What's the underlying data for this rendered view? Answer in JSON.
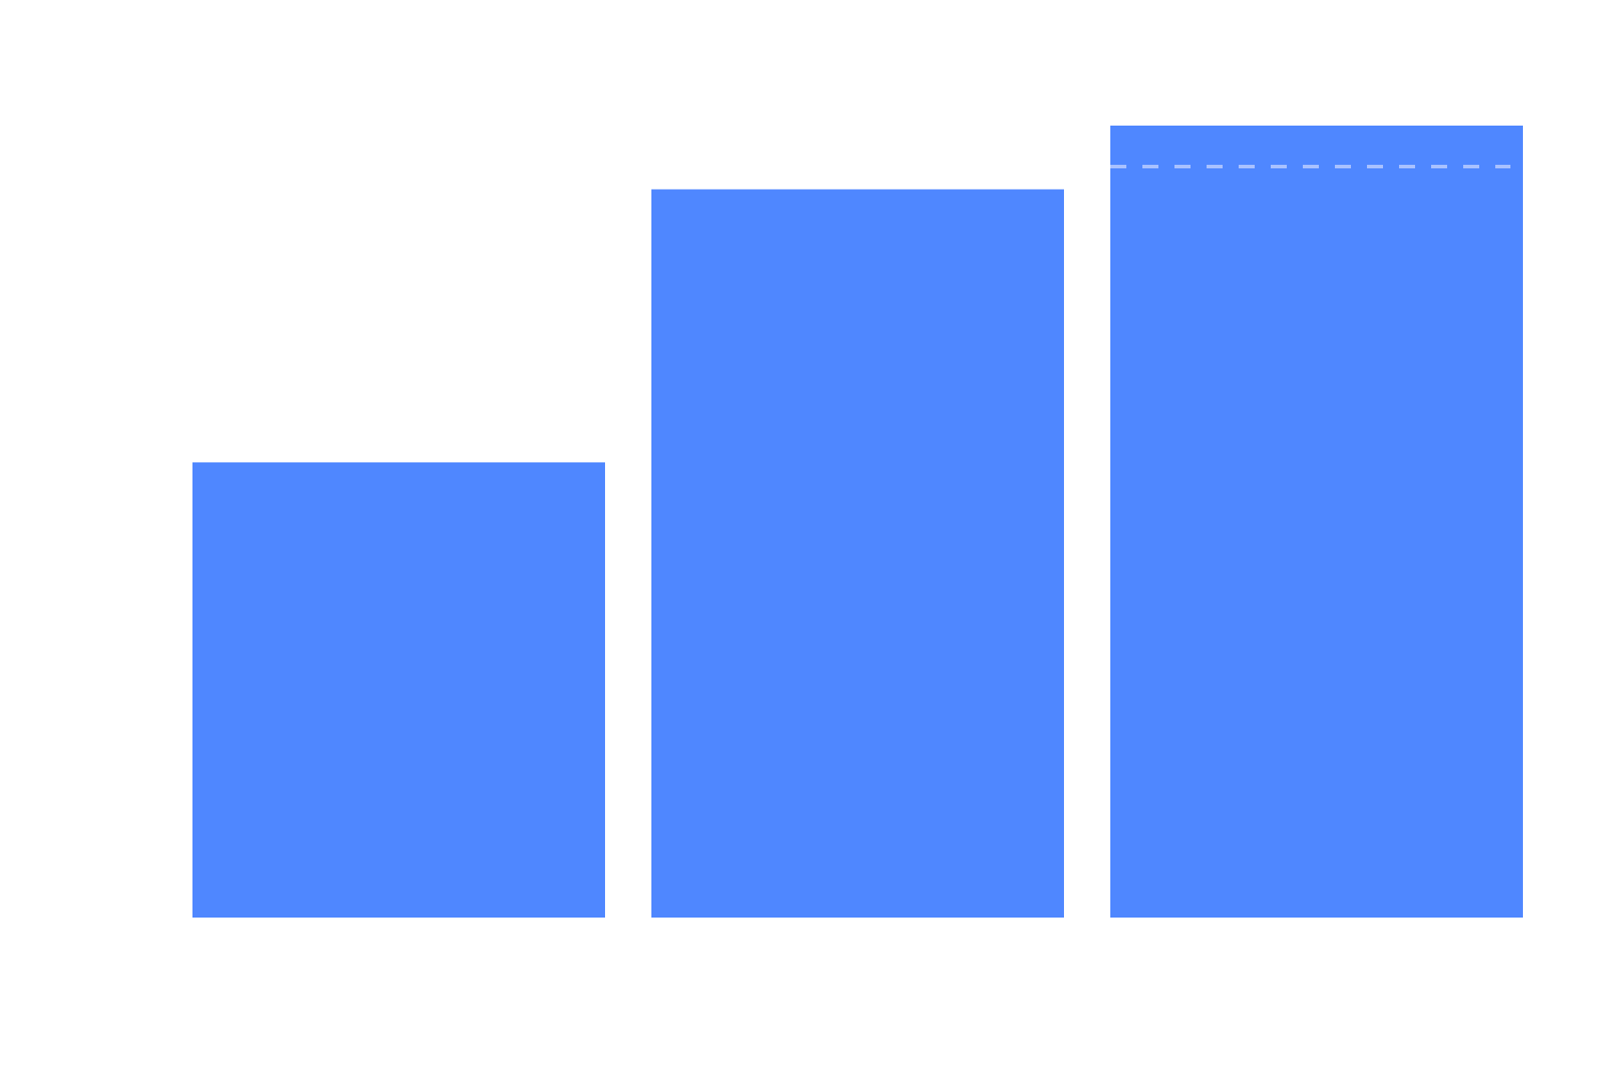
{
  "chart_data": {
    "type": "bar",
    "categories": [
      "",
      "",
      ""
    ],
    "values": [
      0.5,
      0.8,
      0.87
    ],
    "ylim": [
      0,
      0.87
    ],
    "reference_line": {
      "value": 0.825,
      "style": "dashed",
      "color": "#a9c1ff"
    },
    "grid": false,
    "legend": "none",
    "bar_color": "#4f87ff"
  }
}
